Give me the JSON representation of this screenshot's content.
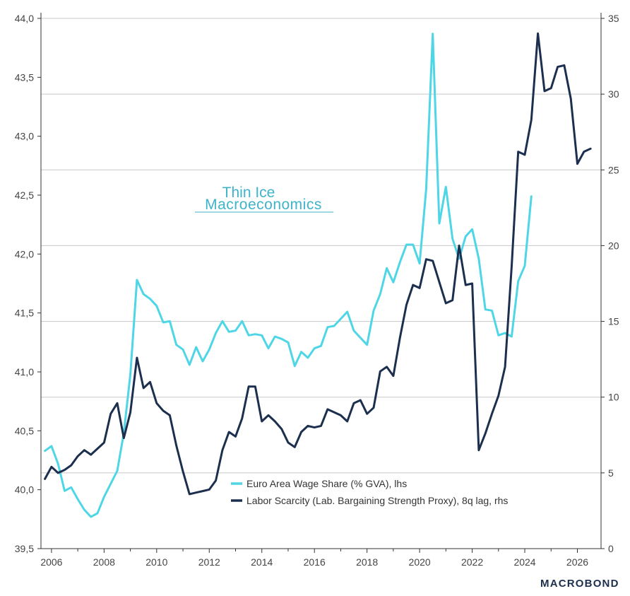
{
  "chart_data": {
    "type": "line",
    "x_ticks": [
      "2006",
      "2008",
      "2010",
      "2012",
      "2014",
      "2016",
      "2018",
      "2020",
      "2022",
      "2024",
      "2026"
    ],
    "y_left_ticks": [
      "39,5",
      "40,0",
      "40,5",
      "41,0",
      "41,5",
      "42,0",
      "42,5",
      "43,0",
      "43,5",
      "44,0"
    ],
    "y_right_ticks": [
      "0",
      "5",
      "10",
      "15",
      "20",
      "25",
      "30",
      "35"
    ],
    "ylim_left": [
      39.5,
      44.0
    ],
    "ylim_right": [
      0,
      35
    ],
    "xlim": [
      2005.6,
      2026.9
    ],
    "grid": "horizontal, aligned to right axis",
    "legend_position": "lower-center",
    "series": [
      {
        "name": "Euro Area Wage Share (% GVA), lhs",
        "axis": "left",
        "color": "#4fd6e6",
        "x": [
          2005.75,
          2006.0,
          2006.25,
          2006.5,
          2006.75,
          2007.0,
          2007.25,
          2007.5,
          2007.75,
          2008.0,
          2008.25,
          2008.5,
          2008.75,
          2009.0,
          2009.25,
          2009.5,
          2009.75,
          2010.0,
          2010.25,
          2010.5,
          2010.75,
          2011.0,
          2011.25,
          2011.5,
          2011.75,
          2012.0,
          2012.25,
          2012.5,
          2012.75,
          2013.0,
          2013.25,
          2013.5,
          2013.75,
          2014.0,
          2014.25,
          2014.5,
          2014.75,
          2015.0,
          2015.25,
          2015.5,
          2015.75,
          2016.0,
          2016.25,
          2016.5,
          2016.75,
          2017.0,
          2017.25,
          2017.5,
          2017.75,
          2018.0,
          2018.25,
          2018.5,
          2018.75,
          2019.0,
          2019.25,
          2019.5,
          2019.75,
          2020.0,
          2020.25,
          2020.5,
          2020.75,
          2021.0,
          2021.25,
          2021.5,
          2021.75,
          2022.0,
          2022.25,
          2022.5,
          2022.75,
          2023.0,
          2023.25,
          2023.5,
          2023.75,
          2024.0,
          2024.25
        ],
        "values": [
          40.33,
          40.37,
          40.22,
          39.99,
          40.02,
          39.92,
          39.83,
          39.77,
          39.8,
          39.94,
          40.05,
          40.16,
          40.48,
          40.98,
          41.78,
          41.66,
          41.62,
          41.56,
          41.42,
          41.43,
          41.23,
          41.19,
          41.06,
          41.21,
          41.09,
          41.19,
          41.33,
          41.43,
          41.34,
          41.35,
          41.43,
          41.31,
          41.32,
          41.31,
          41.2,
          41.3,
          41.28,
          41.25,
          41.05,
          41.17,
          41.12,
          41.2,
          41.22,
          41.38,
          41.39,
          41.45,
          41.51,
          41.35,
          41.29,
          41.23,
          41.52,
          41.66,
          41.88,
          41.76,
          41.93,
          42.08,
          42.08,
          41.92,
          42.55,
          43.87,
          42.26,
          42.57,
          42.13,
          41.96,
          42.15,
          42.21,
          41.96,
          41.53,
          41.52,
          41.31,
          41.33,
          41.3,
          41.77,
          41.9,
          42.49
        ]
      },
      {
        "name": "Labor Scarcity (Lab. Bargaining Strength Proxy), 8q lag, rhs",
        "axis": "right",
        "color": "#1c2f4e",
        "x": [
          2005.75,
          2006.0,
          2006.25,
          2006.5,
          2006.75,
          2007.0,
          2007.25,
          2007.5,
          2007.75,
          2008.0,
          2008.25,
          2008.5,
          2008.75,
          2009.0,
          2009.25,
          2009.5,
          2009.75,
          2010.0,
          2010.25,
          2010.5,
          2010.75,
          2011.0,
          2011.25,
          2011.5,
          2011.75,
          2012.0,
          2012.25,
          2012.5,
          2012.75,
          2013.0,
          2013.25,
          2013.5,
          2013.75,
          2014.0,
          2014.25,
          2014.5,
          2014.75,
          2015.0,
          2015.25,
          2015.5,
          2015.75,
          2016.0,
          2016.25,
          2016.5,
          2016.75,
          2017.0,
          2017.25,
          2017.5,
          2017.75,
          2018.0,
          2018.25,
          2018.5,
          2018.75,
          2019.0,
          2019.25,
          2019.5,
          2019.75,
          2020.0,
          2020.25,
          2020.5,
          2020.75,
          2021.0,
          2021.25,
          2021.5,
          2021.75,
          2022.0,
          2022.25,
          2022.5,
          2022.75,
          2023.0,
          2023.25,
          2023.5,
          2023.75,
          2024.0,
          2024.25,
          2024.5,
          2024.75,
          2025.0,
          2025.25,
          2025.5,
          2025.75,
          2026.0,
          2026.25,
          2026.5
        ],
        "values": [
          4.6,
          5.4,
          5.0,
          5.2,
          5.5,
          6.1,
          6.5,
          6.2,
          6.6,
          7.0,
          8.9,
          9.6,
          7.3,
          9.0,
          12.6,
          10.6,
          11.0,
          9.6,
          9.1,
          8.8,
          6.8,
          5.1,
          3.6,
          3.7,
          3.8,
          3.9,
          4.5,
          6.5,
          7.7,
          7.4,
          8.6,
          10.7,
          10.7,
          8.4,
          8.8,
          8.4,
          7.9,
          7.0,
          6.7,
          7.7,
          8.1,
          8.0,
          8.1,
          9.2,
          9.0,
          8.8,
          8.4,
          9.6,
          9.8,
          8.9,
          9.3,
          11.7,
          12.0,
          11.4,
          13.9,
          16.1,
          17.4,
          17.2,
          19.1,
          19.0,
          17.6,
          16.2,
          16.4,
          20.0,
          17.4,
          17.5,
          6.5,
          7.6,
          8.9,
          10.1,
          12.0,
          18.6,
          26.2,
          26.0,
          28.3,
          34.0,
          30.2,
          30.4,
          31.8,
          31.9,
          29.7,
          25.4,
          26.2,
          26.4
        ]
      }
    ]
  },
  "watermark": {
    "line1": "Thin Ice",
    "line2": "Macroeconomics"
  },
  "brand": {
    "name": "MACROBOND"
  },
  "colors": {
    "grid": "#c8c8c8",
    "axis": "#333333",
    "wage_share": "#4fd6e6",
    "labor_scarcity": "#1c2f4e"
  }
}
